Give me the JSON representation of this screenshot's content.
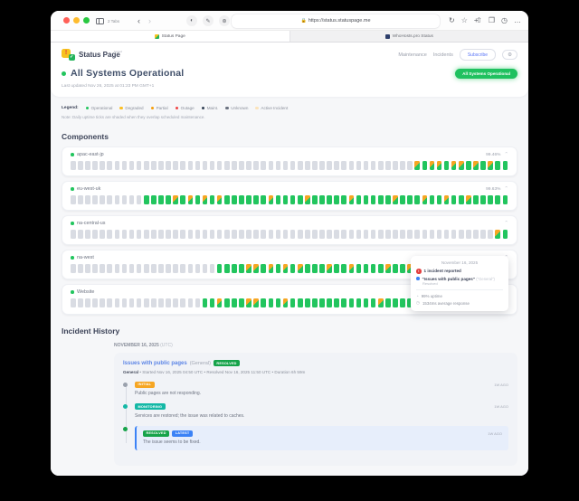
{
  "browser": {
    "tabs_label": "2 Tabs",
    "url": "https://status.statuspage.me",
    "tab1": "Status Page",
    "tab2": "WhoHosts.pro Status"
  },
  "header": {
    "brand": "Status Page",
    "brand_badge": "hosted",
    "nav_maintenance": "Maintenance",
    "nav_incidents": "Incidents",
    "subscribe_label": "Subscribe",
    "status_title": "All Systems Operational",
    "last_updated": "Last updated Nov 26, 2025 at 01:23 PM GMT+1",
    "status_pill": "All Systems Operational"
  },
  "legend": {
    "label": "Legend:",
    "note": "Note: Daily uptime ticks are shaded when they overlap scheduled maintenance.",
    "items": [
      {
        "label": "Operational",
        "color": "#22c55e"
      },
      {
        "label": "Degraded",
        "color": "#fbbf24"
      },
      {
        "label": "Partial",
        "color": "#f59e0b"
      },
      {
        "label": "Outage",
        "color": "#ef4444"
      },
      {
        "label": "Maint.",
        "color": "#334155"
      },
      {
        "label": "Unknown",
        "color": "#6b7280"
      },
      {
        "label": "Active Incident",
        "color": "#fbe3bb"
      }
    ]
  },
  "components": {
    "title": "Components",
    "rows": [
      {
        "name": "apac-east-jp",
        "uptime": "99.46%",
        "ticks": "gggggggggggggggggggggggggggggggggggggggggggggggMGMMGMMGMGMGG"
      },
      {
        "name": "eu-west-uk",
        "uptime": "99.63%",
        "ticks": "ggggggggggGGGGMGMGMGMGGGGGGMGGGGMGGGGGMGGGGGMGGGMGGMGGMGGGGG"
      },
      {
        "name": "na-central-us",
        "uptime": "",
        "ticks": "ggggggggggggggggggggggggggggggggggggggggggggggggggggggggggMG"
      },
      {
        "name": "na-west",
        "uptime": "",
        "ticks": "ggggggggggggggggggggGGGGMMGMGMGMGGGMGGMGGGGMGGMMGGGGGGMGGGMG"
      },
      {
        "name": "Website",
        "uptime": "",
        "ticks": "ggggggggggggggggggGGMGGGMMGGGMGGGGGGGGGGGGMGGGGGGMMHMGGGGGGG"
      }
    ]
  },
  "tooltip": {
    "date": "November 16, 2025",
    "incidents": "1 incident reported",
    "incident_title": "\"Issues with public pages\"",
    "incident_scope": "(\"General\")",
    "incident_state": "Resolved",
    "uptime": "99% uptime",
    "response": "1534ms average response"
  },
  "incident_history": {
    "title": "Incident History",
    "date": "NOVEMBER 16, 2025",
    "timezone": "(UTC)",
    "incident": {
      "title": "Issues with public pages",
      "scope": "(General)",
      "status_badge": "RESOLVED",
      "status_badge_color": "#16a34a",
      "meta_prefix": "General",
      "meta": " • Started Nov 16, 2025 04:50 UTC • Resolved Nov 16, 2025 11:50 UTC • Duration 6h 59m",
      "updates": [
        {
          "badges": [
            {
              "label": "INITIAL",
              "color": "#f6a623"
            }
          ],
          "time": "1W AGO",
          "text": "Public pages are not responding.",
          "dot": "#9aa1ad",
          "highlight": false
        },
        {
          "badges": [
            {
              "label": "MONITORING",
              "color": "#14b8a6"
            }
          ],
          "time": "1W AGO",
          "text": "Services are restored; the issue was related to caches.",
          "dot": "#14b8a6",
          "highlight": false
        },
        {
          "badges": [
            {
              "label": "RESOLVED",
              "color": "#16a34a"
            },
            {
              "label": "LATEST",
              "color": "#3b82f6"
            }
          ],
          "time": "1W AGO",
          "text": "The issue seems to be fixed.",
          "dot": "#16a34a",
          "highlight": true
        }
      ]
    }
  }
}
